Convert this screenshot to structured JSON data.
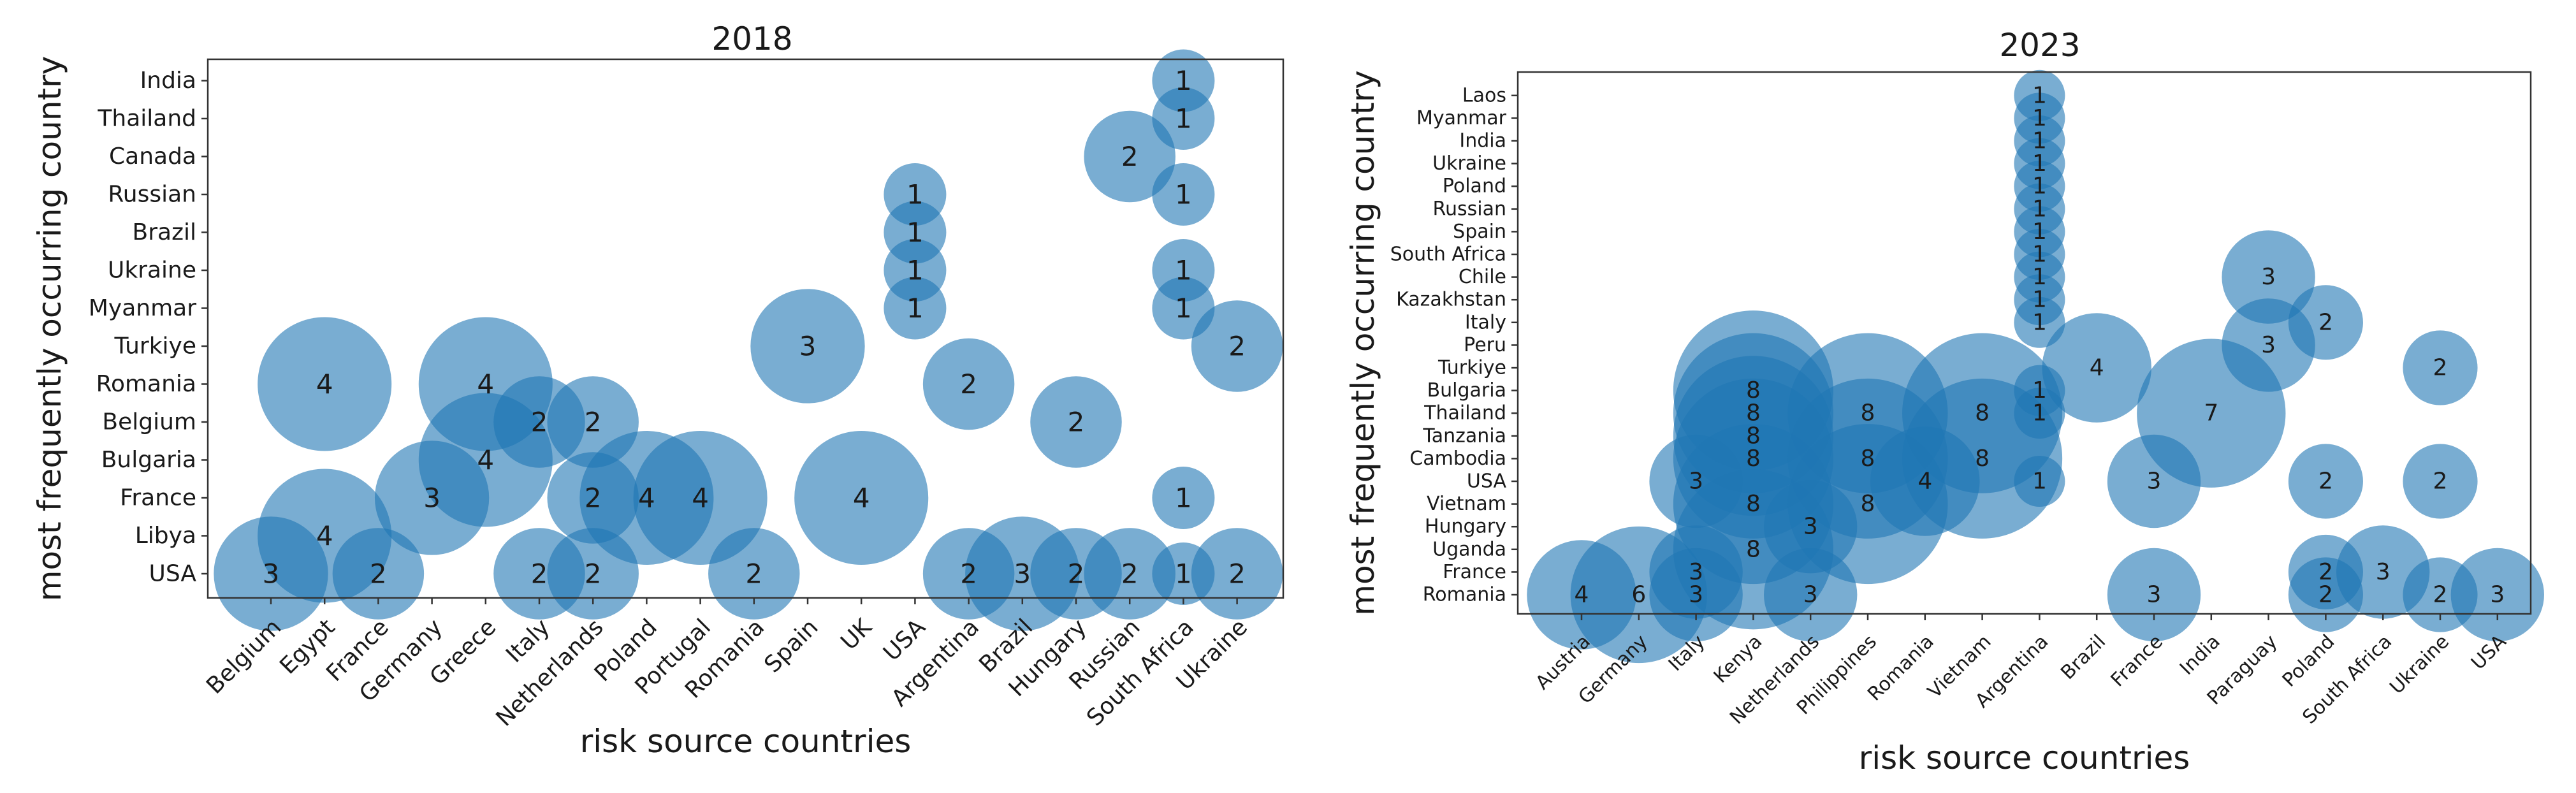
{
  "chart_data": [
    {
      "type": "scatter",
      "title": "2018",
      "xlabel": "risk source countries",
      "ylabel": "most frequently occurring country",
      "color": "#1f77b4",
      "x_categories": [
        "Belgium",
        "Egypt",
        "France",
        "Germany",
        "Greece",
        "Italy",
        "Netherlands",
        "Poland",
        "Portugal",
        "Romania",
        "Spain",
        "UK",
        "USA",
        "Argentina",
        "Brazil",
        "Hungary",
        "Russian",
        "South Africa",
        "Ukraine"
      ],
      "y_categories": [
        "USA",
        "Libya",
        "France",
        "Bulgaria",
        "Belgium",
        "Romania",
        "Turkiye",
        "Myanmar",
        "Ukraine",
        "Brazil",
        "Russian",
        "Canada",
        "Thailand",
        "India"
      ],
      "points": [
        {
          "x": "Belgium",
          "y": "USA",
          "value": 3
        },
        {
          "x": "Egypt",
          "y": "Libya",
          "value": 4
        },
        {
          "x": "Egypt",
          "y": "Romania",
          "value": 4
        },
        {
          "x": "France",
          "y": "USA",
          "value": 2
        },
        {
          "x": "Germany",
          "y": "France",
          "value": 3
        },
        {
          "x": "Greece",
          "y": "Romania",
          "value": 4
        },
        {
          "x": "Greece",
          "y": "Bulgaria",
          "value": 4
        },
        {
          "x": "Italy",
          "y": "Belgium",
          "value": 2
        },
        {
          "x": "Italy",
          "y": "USA",
          "value": 2
        },
        {
          "x": "Netherlands",
          "y": "Belgium",
          "value": 2
        },
        {
          "x": "Netherlands",
          "y": "France",
          "value": 2
        },
        {
          "x": "Netherlands",
          "y": "USA",
          "value": 2
        },
        {
          "x": "Poland",
          "y": "France",
          "value": 4
        },
        {
          "x": "Portugal",
          "y": "France",
          "value": 4
        },
        {
          "x": "Romania",
          "y": "USA",
          "value": 2
        },
        {
          "x": "Spain",
          "y": "Turkiye",
          "value": 3
        },
        {
          "x": "UK",
          "y": "France",
          "value": 4
        },
        {
          "x": "USA",
          "y": "Russian",
          "value": 1
        },
        {
          "x": "USA",
          "y": "Brazil",
          "value": 1
        },
        {
          "x": "USA",
          "y": "Ukraine",
          "value": 1
        },
        {
          "x": "USA",
          "y": "Myanmar",
          "value": 1
        },
        {
          "x": "Argentina",
          "y": "Romania",
          "value": 2
        },
        {
          "x": "Argentina",
          "y": "USA",
          "value": 2
        },
        {
          "x": "Brazil",
          "y": "USA",
          "value": 3
        },
        {
          "x": "Hungary",
          "y": "Belgium",
          "value": 2
        },
        {
          "x": "Hungary",
          "y": "USA",
          "value": 2
        },
        {
          "x": "Russian",
          "y": "Canada",
          "value": 2
        },
        {
          "x": "Russian",
          "y": "USA",
          "value": 2
        },
        {
          "x": "South Africa",
          "y": "India",
          "value": 1
        },
        {
          "x": "South Africa",
          "y": "Thailand",
          "value": 1
        },
        {
          "x": "South Africa",
          "y": "Russian",
          "value": 1
        },
        {
          "x": "South Africa",
          "y": "Ukraine",
          "value": 1
        },
        {
          "x": "South Africa",
          "y": "Myanmar",
          "value": 1
        },
        {
          "x": "South Africa",
          "y": "France",
          "value": 1
        },
        {
          "x": "South Africa",
          "y": "USA",
          "value": 1
        },
        {
          "x": "Ukraine",
          "y": "Turkiye",
          "value": 2
        },
        {
          "x": "Ukraine",
          "y": "USA",
          "value": 2
        }
      ]
    },
    {
      "type": "scatter",
      "title": "2023",
      "xlabel": "risk source countries",
      "ylabel": "most frequently occurring country",
      "color": "#1f77b4",
      "x_categories": [
        "Austria",
        "Germany",
        "Italy",
        "Kenya",
        "Netherlands",
        "Philippines",
        "Romania",
        "Vietnam",
        "Argentina",
        "Brazil",
        "France",
        "India",
        "Paraguay",
        "Poland",
        "South Africa",
        "Ukraine",
        "USA"
      ],
      "y_categories": [
        "Romania",
        "France",
        "Uganda",
        "Hungary",
        "Vietnam",
        "USA",
        "Cambodia",
        "Tanzania",
        "Thailand",
        "Bulgaria",
        "Turkiye",
        "Peru",
        "Italy",
        "Kazakhstan",
        "Chile",
        "South Africa",
        "Spain",
        "Russian",
        "Poland",
        "Ukraine",
        "India",
        "Myanmar",
        "Laos"
      ],
      "points": [
        {
          "x": "Austria",
          "y": "Romania",
          "value": 4
        },
        {
          "x": "Germany",
          "y": "Romania",
          "value": 6
        },
        {
          "x": "Italy",
          "y": "Romania",
          "value": 3
        },
        {
          "x": "Italy",
          "y": "France",
          "value": 3
        },
        {
          "x": "Italy",
          "y": "USA",
          "value": 3
        },
        {
          "x": "Kenya",
          "y": "Bulgaria",
          "value": 8
        },
        {
          "x": "Kenya",
          "y": "Thailand",
          "value": 8
        },
        {
          "x": "Kenya",
          "y": "Tanzania",
          "value": 8
        },
        {
          "x": "Kenya",
          "y": "Cambodia",
          "value": 8
        },
        {
          "x": "Kenya",
          "y": "Vietnam",
          "value": 8
        },
        {
          "x": "Kenya",
          "y": "Uganda",
          "value": 8
        },
        {
          "x": "Netherlands",
          "y": "Hungary",
          "value": 3
        },
        {
          "x": "Netherlands",
          "y": "Romania",
          "value": 3
        },
        {
          "x": "Philippines",
          "y": "Thailand",
          "value": 8
        },
        {
          "x": "Philippines",
          "y": "Cambodia",
          "value": 8
        },
        {
          "x": "Philippines",
          "y": "Vietnam",
          "value": 8
        },
        {
          "x": "Romania",
          "y": "USA",
          "value": 4
        },
        {
          "x": "Vietnam",
          "y": "Thailand",
          "value": 8
        },
        {
          "x": "Vietnam",
          "y": "Cambodia",
          "value": 8
        },
        {
          "x": "Argentina",
          "y": "Laos",
          "value": 1
        },
        {
          "x": "Argentina",
          "y": "Myanmar",
          "value": 1
        },
        {
          "x": "Argentina",
          "y": "India",
          "value": 1
        },
        {
          "x": "Argentina",
          "y": "Ukraine",
          "value": 1
        },
        {
          "x": "Argentina",
          "y": "Poland",
          "value": 1
        },
        {
          "x": "Argentina",
          "y": "Russian",
          "value": 1
        },
        {
          "x": "Argentina",
          "y": "Spain",
          "value": 1
        },
        {
          "x": "Argentina",
          "y": "South Africa",
          "value": 1
        },
        {
          "x": "Argentina",
          "y": "Chile",
          "value": 1
        },
        {
          "x": "Argentina",
          "y": "Kazakhstan",
          "value": 1
        },
        {
          "x": "Argentina",
          "y": "Italy",
          "value": 1
        },
        {
          "x": "Argentina",
          "y": "Bulgaria",
          "value": 1
        },
        {
          "x": "Argentina",
          "y": "Thailand",
          "value": 1
        },
        {
          "x": "Argentina",
          "y": "USA",
          "value": 1
        },
        {
          "x": "Brazil",
          "y": "Turkiye",
          "value": 4
        },
        {
          "x": "France",
          "y": "USA",
          "value": 3
        },
        {
          "x": "France",
          "y": "Romania",
          "value": 3
        },
        {
          "x": "India",
          "y": "Thailand",
          "value": 7
        },
        {
          "x": "Paraguay",
          "y": "Chile",
          "value": 3
        },
        {
          "x": "Paraguay",
          "y": "Peru",
          "value": 3
        },
        {
          "x": "Poland",
          "y": "Italy",
          "value": 2
        },
        {
          "x": "Poland",
          "y": "USA",
          "value": 2
        },
        {
          "x": "Poland",
          "y": "France",
          "value": 2
        },
        {
          "x": "Poland",
          "y": "Romania",
          "value": 2
        },
        {
          "x": "South Africa",
          "y": "France",
          "value": 3
        },
        {
          "x": "Ukraine",
          "y": "Turkiye",
          "value": 2
        },
        {
          "x": "Ukraine",
          "y": "USA",
          "value": 2
        },
        {
          "x": "Ukraine",
          "y": "Romania",
          "value": 2
        },
        {
          "x": "USA",
          "y": "Romania",
          "value": 3
        }
      ]
    }
  ]
}
